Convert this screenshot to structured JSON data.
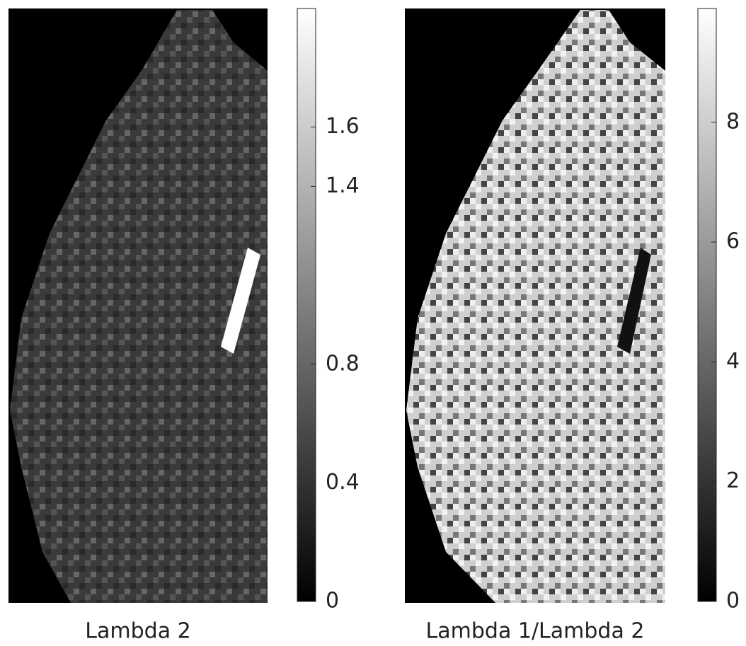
{
  "chart_data": [
    {
      "type": "heatmap",
      "xlabel": "Lambda 2",
      "colormap": [
        "#000000",
        "#ffffff"
      ],
      "ylim": [
        0,
        2
      ],
      "yticks": [
        0,
        0.4,
        0.8,
        1.4,
        1.6
      ]
    },
    {
      "type": "heatmap",
      "xlabel": "Lambda 1/Lambda 2",
      "colormap": [
        "#000000",
        "#ffffff"
      ],
      "ylim": [
        0,
        9.9
      ],
      "yticks": [
        0,
        2,
        4,
        6,
        8
      ]
    }
  ]
}
